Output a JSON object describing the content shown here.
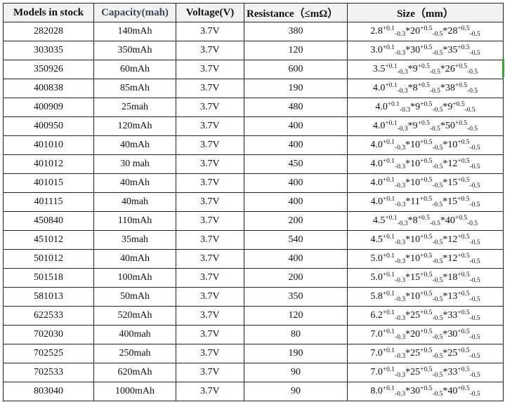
{
  "headers": {
    "model": "Models in stock",
    "capacity": "Capacity(mah)",
    "voltage": "Voltage(V)",
    "resistance": "Resistance（≤mΩ）",
    "size": "Size（mm）"
  },
  "tolerances": {
    "first_plus": "+0.1",
    "first_minus": "-0.3",
    "plus": "+0.5",
    "minus": "-0.5"
  },
  "rows": [
    {
      "model": "282028",
      "capacity": "140mAh",
      "voltage": "3.7V",
      "resistance": "380",
      "size": [
        "2.8",
        "20",
        "28"
      ]
    },
    {
      "model": "303035",
      "capacity": "350mAh",
      "voltage": "3.7V",
      "resistance": "120",
      "size": [
        "3.0",
        "30",
        "35"
      ]
    },
    {
      "model": "350926",
      "capacity": "60mAh",
      "voltage": "3.7V",
      "resistance": "600",
      "size": [
        "3.5",
        "9",
        "26"
      ]
    },
    {
      "model": "400838",
      "capacity": "85mAh",
      "voltage": "3.7V",
      "resistance": "190",
      "size": [
        "4.0",
        "8",
        "38"
      ]
    },
    {
      "model": "400909",
      "capacity": "25mah",
      "voltage": "3.7V",
      "resistance": "480",
      "size": [
        "4.0",
        "9",
        "9"
      ]
    },
    {
      "model": "400950",
      "capacity": "120mAh",
      "voltage": "3.7V",
      "resistance": "400",
      "size": [
        "4.0",
        "9",
        "50"
      ]
    },
    {
      "model": "401010",
      "capacity": "40mAh",
      "voltage": "3.7V",
      "resistance": "400",
      "size": [
        "4.0",
        "10",
        "10"
      ]
    },
    {
      "model": "401012",
      "capacity": "30 mah",
      "voltage": "3.7V",
      "resistance": "450",
      "size": [
        "4.0",
        "10",
        "12"
      ]
    },
    {
      "model": "401015",
      "capacity": "40mAh",
      "voltage": "3.7V",
      "resistance": "400",
      "size": [
        "4.0",
        "10",
        "15"
      ]
    },
    {
      "model": "401115",
      "capacity": "40mah",
      "voltage": "3.7V",
      "resistance": "400",
      "size": [
        "4.0",
        "11",
        "15"
      ]
    },
    {
      "model": "450840",
      "capacity": "110mAh",
      "voltage": "3.7V",
      "resistance": "200",
      "size": [
        "4.5",
        "8",
        "40"
      ]
    },
    {
      "model": "451012",
      "capacity": "35mah",
      "voltage": "3.7V",
      "resistance": "540",
      "size": [
        "4.5",
        "10",
        "12"
      ]
    },
    {
      "model": "501012",
      "capacity": "40mAh",
      "voltage": "3.7V",
      "resistance": "400",
      "size": [
        "5.0",
        "10",
        "12"
      ]
    },
    {
      "model": "501518",
      "capacity": "100mAh",
      "voltage": "3.7V",
      "resistance": "200",
      "size": [
        "5.0",
        "15",
        "18"
      ]
    },
    {
      "model": "581013",
      "capacity": "50mAh",
      "voltage": "3.7V",
      "resistance": "350",
      "size": [
        "5.8",
        "10",
        "13"
      ]
    },
    {
      "model": "622533",
      "capacity": "520mAh",
      "voltage": "3.7V",
      "resistance": "120",
      "size": [
        "6.2",
        "25",
        "33"
      ]
    },
    {
      "model": "702030",
      "capacity": "400mah",
      "voltage": "3.7V",
      "resistance": "80",
      "size": [
        "7.0",
        "20",
        "30"
      ]
    },
    {
      "model": "702525",
      "capacity": "250mah",
      "voltage": "3.7V",
      "resistance": "190",
      "size": [
        "7.0",
        "25",
        "25"
      ]
    },
    {
      "model": "702533",
      "capacity": "620mAh",
      "voltage": "3.7V",
      "resistance": "90",
      "size": [
        "7.0",
        "25",
        "33"
      ]
    },
    {
      "model": "803040",
      "capacity": "1000mAh",
      "voltage": "3.7V",
      "resistance": "90",
      "size": [
        "8.0",
        "30",
        "40"
      ]
    }
  ]
}
